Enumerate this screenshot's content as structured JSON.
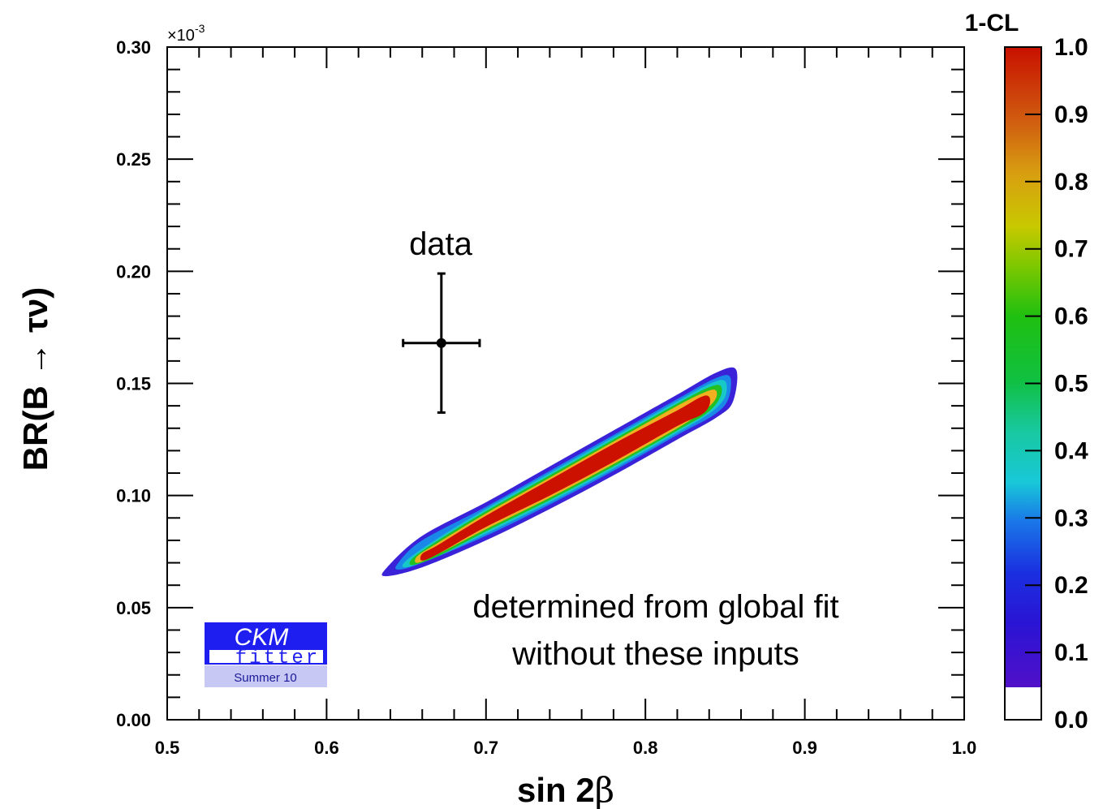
{
  "chart_data": {
    "type": "heatmap",
    "xlabel_main": "sin 2",
    "xlabel_greek": "β",
    "ylabel": "BR(B → τν)",
    "y_multiplier_base": "×10",
    "y_multiplier_exp": "-3",
    "xlim": [
      0.5,
      1.0
    ],
    "ylim": [
      0.0,
      0.3
    ],
    "x_ticks": [
      "0.5",
      "0.6",
      "0.7",
      "0.8",
      "0.9",
      "1.0"
    ],
    "y_ticks": [
      "0.00",
      "0.05",
      "0.10",
      "0.15",
      "0.20",
      "0.25",
      "0.30"
    ],
    "colorbar": {
      "title": "1-CL",
      "range": [
        0.0,
        1.0
      ],
      "ticks": [
        "0.0",
        "0.1",
        "0.2",
        "0.3",
        "0.4",
        "0.5",
        "0.6",
        "0.7",
        "0.8",
        "0.9",
        "1.0"
      ],
      "white_below": 0.05
    },
    "fit_region": {
      "description_line1": "determined from global fit",
      "description_line2": "without these inputs",
      "contours": [
        {
          "level": 0.05,
          "color": "#3a22d8",
          "lower": [
            [
              0.637,
              0.064
            ],
            [
              0.66,
              0.068
            ],
            [
              0.7,
              0.08
            ],
            [
              0.74,
              0.094
            ],
            [
              0.78,
              0.109
            ],
            [
              0.82,
              0.125
            ],
            [
              0.845,
              0.135
            ],
            [
              0.855,
              0.142
            ]
          ],
          "upper": [
            [
              0.638,
              0.068
            ],
            [
              0.66,
              0.082
            ],
            [
              0.7,
              0.097
            ],
            [
              0.74,
              0.113
            ],
            [
              0.78,
              0.129
            ],
            [
              0.82,
              0.145
            ],
            [
              0.845,
              0.155
            ],
            [
              0.857,
              0.156
            ]
          ]
        },
        {
          "level": 0.15,
          "color": "#1a88e8",
          "lower": [
            [
              0.645,
              0.067
            ],
            [
              0.66,
              0.07
            ],
            [
              0.7,
              0.082
            ],
            [
              0.74,
              0.096
            ],
            [
              0.78,
              0.111
            ],
            [
              0.82,
              0.127
            ],
            [
              0.843,
              0.136
            ],
            [
              0.852,
              0.143
            ]
          ],
          "upper": [
            [
              0.645,
              0.07
            ],
            [
              0.66,
              0.08
            ],
            [
              0.7,
              0.095
            ],
            [
              0.74,
              0.111
            ],
            [
              0.78,
              0.127
            ],
            [
              0.82,
              0.143
            ],
            [
              0.843,
              0.152
            ],
            [
              0.853,
              0.153
            ]
          ]
        },
        {
          "level": 0.3,
          "color": "#18c8c8",
          "lower": [
            [
              0.65,
              0.068
            ],
            [
              0.67,
              0.073
            ],
            [
              0.7,
              0.083
            ],
            [
              0.74,
              0.097
            ],
            [
              0.78,
              0.112
            ],
            [
              0.82,
              0.128
            ],
            [
              0.841,
              0.137
            ],
            [
              0.85,
              0.144
            ]
          ],
          "upper": [
            [
              0.65,
              0.071
            ],
            [
              0.67,
              0.081
            ],
            [
              0.7,
              0.094
            ],
            [
              0.74,
              0.11
            ],
            [
              0.78,
              0.126
            ],
            [
              0.82,
              0.142
            ],
            [
              0.841,
              0.15
            ],
            [
              0.85,
              0.151
            ]
          ]
        },
        {
          "level": 0.5,
          "color": "#22c022",
          "lower": [
            [
              0.654,
              0.069
            ],
            [
              0.67,
              0.073
            ],
            [
              0.7,
              0.084
            ],
            [
              0.74,
              0.098
            ],
            [
              0.78,
              0.113
            ],
            [
              0.82,
              0.129
            ],
            [
              0.839,
              0.137
            ],
            [
              0.847,
              0.144
            ]
          ],
          "upper": [
            [
              0.654,
              0.072
            ],
            [
              0.67,
              0.08
            ],
            [
              0.7,
              0.093
            ],
            [
              0.74,
              0.109
            ],
            [
              0.78,
              0.125
            ],
            [
              0.82,
              0.141
            ],
            [
              0.839,
              0.148
            ],
            [
              0.847,
              0.149
            ]
          ]
        },
        {
          "level": 0.75,
          "color": "#f0b020",
          "lower": [
            [
              0.657,
              0.07
            ],
            [
              0.67,
              0.074
            ],
            [
              0.7,
              0.085
            ],
            [
              0.74,
              0.099
            ],
            [
              0.78,
              0.114
            ],
            [
              0.82,
              0.13
            ],
            [
              0.837,
              0.138
            ],
            [
              0.844,
              0.143
            ]
          ],
          "upper": [
            [
              0.657,
              0.073
            ],
            [
              0.67,
              0.079
            ],
            [
              0.7,
              0.092
            ],
            [
              0.74,
              0.108
            ],
            [
              0.78,
              0.124
            ],
            [
              0.82,
              0.14
            ],
            [
              0.837,
              0.146
            ],
            [
              0.844,
              0.147
            ]
          ]
        },
        {
          "level": 0.95,
          "color": "#cc1100",
          "lower": [
            [
              0.66,
              0.071
            ],
            [
              0.67,
              0.074
            ],
            [
              0.7,
              0.086
            ],
            [
              0.74,
              0.1
            ],
            [
              0.78,
              0.115
            ],
            [
              0.82,
              0.131
            ],
            [
              0.835,
              0.136
            ],
            [
              0.84,
              0.14
            ]
          ],
          "upper": [
            [
              0.66,
              0.074
            ],
            [
              0.67,
              0.078
            ],
            [
              0.7,
              0.091
            ],
            [
              0.74,
              0.107
            ],
            [
              0.78,
              0.123
            ],
            [
              0.82,
              0.138
            ],
            [
              0.835,
              0.144
            ],
            [
              0.84,
              0.144
            ]
          ]
        }
      ]
    },
    "data_point": {
      "label": "data",
      "x": 0.672,
      "y": 0.168,
      "x_err": 0.024,
      "y_err_low": 0.031,
      "y_err_high": 0.031
    }
  },
  "logo": {
    "top": "CKM",
    "bottom": "fitter",
    "season": "Summer 10",
    "colors": {
      "band": "#1e1ef0",
      "season_bg": "#c8c8f4"
    }
  },
  "colors": {
    "colorbar_stops": [
      "#5010c8",
      "#1a20d8",
      "#1a6ae8",
      "#18b8d8",
      "#18c8a0",
      "#10c030",
      "#50c010",
      "#c8c800",
      "#d89010",
      "#d05010",
      "#c81000"
    ]
  }
}
